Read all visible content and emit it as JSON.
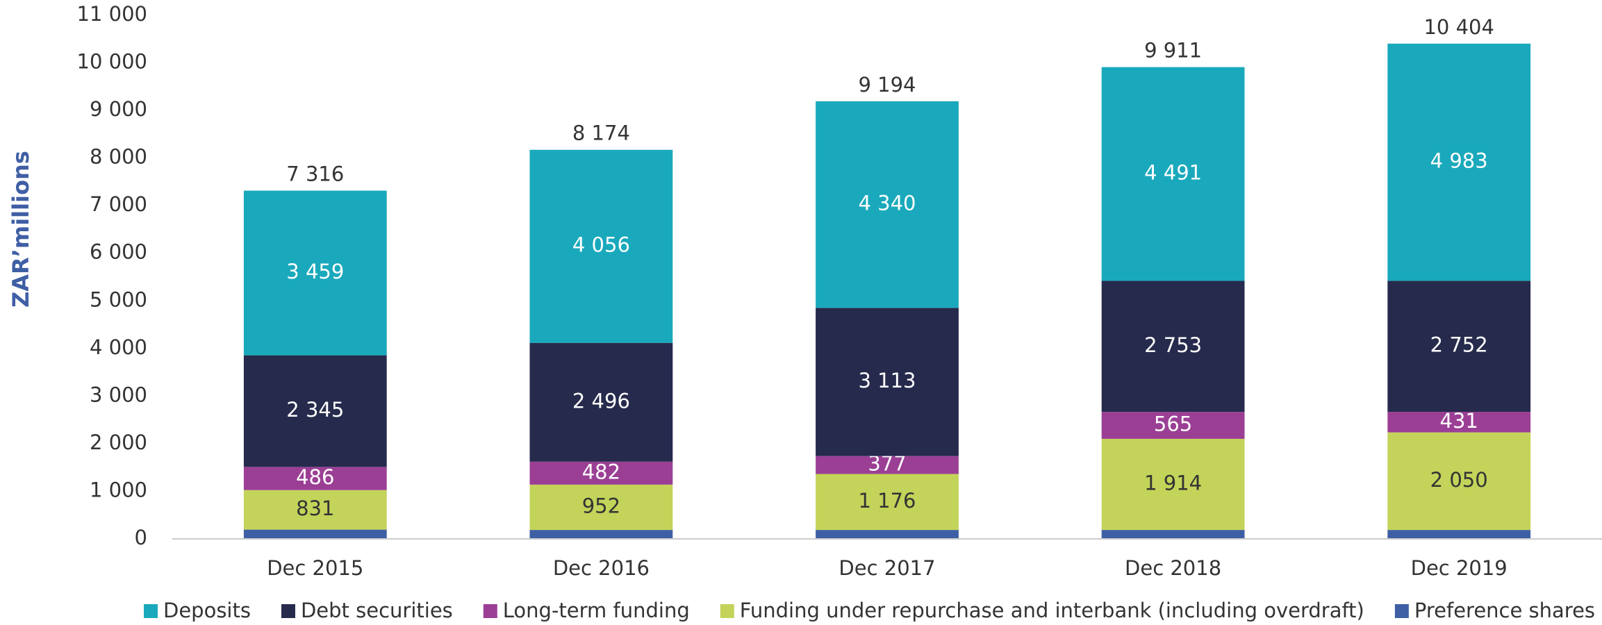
{
  "chart_data": {
    "type": "stacked_bar",
    "y_label": "ZAR’millions",
    "categories": [
      "Dec 2015",
      "Dec 2016",
      "Dec 2017",
      "Dec 2018",
      "Dec 2019"
    ],
    "series": [
      {
        "name": "Preference shares",
        "color": "#3f5fa5",
        "values": [
          195,
          188,
          188,
          188,
          188
        ]
      },
      {
        "name": "Funding under repurchase and interbank (including overdraft)",
        "color": "#c4d35a",
        "values": [
          831,
          952,
          1176,
          1914,
          2050
        ],
        "value_labels": [
          "831",
          "952",
          "1 176",
          "1 914",
          "2 050"
        ]
      },
      {
        "name": "Long-term funding",
        "color": "#9b3f95",
        "values": [
          486,
          482,
          377,
          565,
          431
        ],
        "value_labels": [
          "486",
          "482",
          "377",
          "565",
          "431"
        ]
      },
      {
        "name": "Debt securities",
        "color": "#262a4c",
        "values": [
          2345,
          2496,
          3113,
          2753,
          2752
        ],
        "value_labels": [
          "2 345",
          "2 496",
          "3 113",
          "2 753",
          "2 752"
        ]
      },
      {
        "name": "Deposits",
        "color": "#1aa9bc",
        "values": [
          3459,
          4056,
          4340,
          4491,
          4983
        ],
        "value_labels": [
          "3 459",
          "4 056",
          "4 340",
          "4 491",
          "4 983"
        ]
      }
    ],
    "totals": {
      "values": [
        7316,
        8174,
        9194,
        9911,
        10404
      ],
      "value_labels": [
        "7 316",
        "8 174",
        "9 194",
        "9 911",
        "10 404"
      ]
    },
    "ylim": [
      0,
      11000
    ],
    "yticks": [
      0,
      {
        "value": 1000,
        "label": "1 000"
      },
      {
        "value": 2000,
        "label": "2 000"
      },
      {
        "value": 3000,
        "label": "3 000"
      },
      {
        "value": 4000,
        "label": "4 000"
      },
      {
        "value": 5000,
        "label": "5 000"
      },
      {
        "value": 6000,
        "label": "6 000"
      },
      {
        "value": 7000,
        "label": "7 000"
      },
      {
        "value": 8000,
        "label": "8 000"
      },
      {
        "value": 9000,
        "label": "9 000"
      },
      {
        "value": 10000,
        "label": "10 000"
      },
      {
        "value": 11000,
        "label": "11 000"
      }
    ],
    "legend": "bottom",
    "legend_order": [
      4,
      3,
      2,
      1,
      0
    ]
  }
}
